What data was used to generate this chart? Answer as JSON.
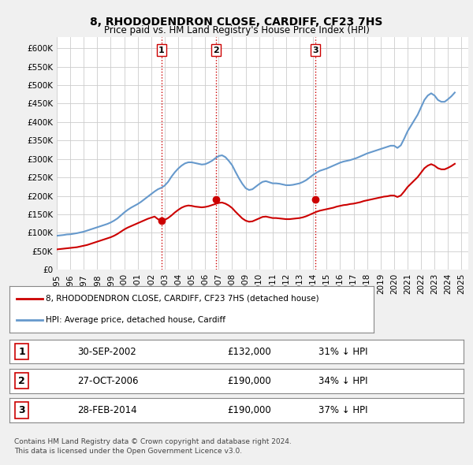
{
  "title": "8, RHODODENDRON CLOSE, CARDIFF, CF23 7HS",
  "subtitle": "Price paid vs. HM Land Registry's House Price Index (HPI)",
  "background_color": "#f0f0f0",
  "plot_bg_color": "#ffffff",
  "ylabel_ticks": [
    "£0",
    "£50K",
    "£100K",
    "£150K",
    "£200K",
    "£250K",
    "£300K",
    "£350K",
    "£400K",
    "£450K",
    "£500K",
    "£550K",
    "£600K"
  ],
  "ytick_values": [
    0,
    50000,
    100000,
    150000,
    200000,
    250000,
    300000,
    350000,
    400000,
    450000,
    500000,
    550000,
    600000
  ],
  "xlim_start": 1995.0,
  "xlim_end": 2025.5,
  "ylim": [
    0,
    630000
  ],
  "hpi_line_color": "#6699cc",
  "price_line_color": "#cc0000",
  "vline_color": "#cc0000",
  "vline_style": ":",
  "transaction_dates": [
    2002.75,
    2006.82,
    2014.16
  ],
  "transaction_prices": [
    132000,
    190000,
    190000
  ],
  "transaction_labels": [
    "1",
    "2",
    "3"
  ],
  "legend_text_1": "8, RHODODENDRON CLOSE, CARDIFF, CF23 7HS (detached house)",
  "legend_text_2": "HPI: Average price, detached house, Cardiff",
  "table_rows": [
    [
      "1",
      "30-SEP-2002",
      "£132,000",
      "31% ↓ HPI"
    ],
    [
      "2",
      "27-OCT-2006",
      "£190,000",
      "34% ↓ HPI"
    ],
    [
      "3",
      "28-FEB-2014",
      "£190,000",
      "37% ↓ HPI"
    ]
  ],
  "footer_text": "Contains HM Land Registry data © Crown copyright and database right 2024.\nThis data is licensed under the Open Government Licence v3.0.",
  "hpi_data_x": [
    1995.0,
    1995.25,
    1995.5,
    1995.75,
    1996.0,
    1996.25,
    1996.5,
    1996.75,
    1997.0,
    1997.25,
    1997.5,
    1997.75,
    1998.0,
    1998.25,
    1998.5,
    1998.75,
    1999.0,
    1999.25,
    1999.5,
    1999.75,
    2000.0,
    2000.25,
    2000.5,
    2000.75,
    2001.0,
    2001.25,
    2001.5,
    2001.75,
    2002.0,
    2002.25,
    2002.5,
    2002.75,
    2003.0,
    2003.25,
    2003.5,
    2003.75,
    2004.0,
    2004.25,
    2004.5,
    2004.75,
    2005.0,
    2005.25,
    2005.5,
    2005.75,
    2006.0,
    2006.25,
    2006.5,
    2006.75,
    2007.0,
    2007.25,
    2007.5,
    2007.75,
    2008.0,
    2008.25,
    2008.5,
    2008.75,
    2009.0,
    2009.25,
    2009.5,
    2009.75,
    2010.0,
    2010.25,
    2010.5,
    2010.75,
    2011.0,
    2011.25,
    2011.5,
    2011.75,
    2012.0,
    2012.25,
    2012.5,
    2012.75,
    2013.0,
    2013.25,
    2013.5,
    2013.75,
    2014.0,
    2014.25,
    2014.5,
    2014.75,
    2015.0,
    2015.25,
    2015.5,
    2015.75,
    2016.0,
    2016.25,
    2016.5,
    2016.75,
    2017.0,
    2017.25,
    2017.5,
    2017.75,
    2018.0,
    2018.25,
    2018.5,
    2018.75,
    2019.0,
    2019.25,
    2019.5,
    2019.75,
    2020.0,
    2020.25,
    2020.5,
    2020.75,
    2021.0,
    2021.25,
    2021.5,
    2021.75,
    2022.0,
    2022.25,
    2022.5,
    2022.75,
    2023.0,
    2023.25,
    2023.5,
    2023.75,
    2024.0,
    2024.25,
    2024.5
  ],
  "hpi_data_y": [
    92000,
    93000,
    94000,
    95500,
    96000,
    97500,
    99000,
    101000,
    103000,
    106000,
    109000,
    112000,
    115000,
    118000,
    121000,
    124000,
    128000,
    133000,
    139000,
    147000,
    155000,
    162000,
    168000,
    173000,
    178000,
    184000,
    191000,
    198000,
    205000,
    212000,
    218000,
    222000,
    228000,
    238000,
    252000,
    264000,
    274000,
    282000,
    288000,
    291000,
    291000,
    289000,
    287000,
    285000,
    286000,
    290000,
    295000,
    302000,
    308000,
    310000,
    305000,
    295000,
    283000,
    265000,
    248000,
    233000,
    221000,
    216000,
    218000,
    225000,
    232000,
    238000,
    240000,
    237000,
    234000,
    234000,
    233000,
    231000,
    229000,
    229000,
    230000,
    232000,
    234000,
    238000,
    243000,
    250000,
    257000,
    263000,
    268000,
    271000,
    274000,
    278000,
    282000,
    286000,
    290000,
    293000,
    295000,
    297000,
    300000,
    303000,
    307000,
    311000,
    315000,
    318000,
    321000,
    324000,
    327000,
    330000,
    333000,
    336000,
    336000,
    330000,
    337000,
    355000,
    375000,
    390000,
    405000,
    420000,
    440000,
    460000,
    472000,
    478000,
    472000,
    460000,
    455000,
    455000,
    462000,
    470000,
    480000
  ],
  "price_data_x": [
    1995.0,
    1995.25,
    1995.5,
    1995.75,
    1996.0,
    1996.25,
    1996.5,
    1996.75,
    1997.0,
    1997.25,
    1997.5,
    1997.75,
    1998.0,
    1998.25,
    1998.5,
    1998.75,
    1999.0,
    1999.25,
    1999.5,
    1999.75,
    2000.0,
    2000.25,
    2000.5,
    2000.75,
    2001.0,
    2001.25,
    2001.5,
    2001.75,
    2002.0,
    2002.25,
    2002.5,
    2002.75,
    2003.0,
    2003.25,
    2003.5,
    2003.75,
    2004.0,
    2004.25,
    2004.5,
    2004.75,
    2005.0,
    2005.25,
    2005.5,
    2005.75,
    2006.0,
    2006.25,
    2006.5,
    2006.75,
    2007.0,
    2007.25,
    2007.5,
    2007.75,
    2008.0,
    2008.25,
    2008.5,
    2008.75,
    2009.0,
    2009.25,
    2009.5,
    2009.75,
    2010.0,
    2010.25,
    2010.5,
    2010.75,
    2011.0,
    2011.25,
    2011.5,
    2011.75,
    2012.0,
    2012.25,
    2012.5,
    2012.75,
    2013.0,
    2013.25,
    2013.5,
    2013.75,
    2014.0,
    2014.25,
    2014.5,
    2014.75,
    2015.0,
    2015.25,
    2015.5,
    2015.75,
    2016.0,
    2016.25,
    2016.5,
    2016.75,
    2017.0,
    2017.25,
    2017.5,
    2017.75,
    2018.0,
    2018.25,
    2018.5,
    2018.75,
    2019.0,
    2019.25,
    2019.5,
    2019.75,
    2020.0,
    2020.25,
    2020.5,
    2020.75,
    2021.0,
    2021.25,
    2021.5,
    2021.75,
    2022.0,
    2022.25,
    2022.5,
    2022.75,
    2023.0,
    2023.25,
    2023.5,
    2023.75,
    2024.0,
    2024.25,
    2024.5
  ],
  "price_data_y": [
    55000,
    56000,
    57000,
    58000,
    59000,
    60000,
    61000,
    63000,
    65000,
    67000,
    70000,
    73000,
    76000,
    79000,
    82000,
    85000,
    88000,
    92000,
    97000,
    103000,
    109000,
    114000,
    118000,
    122000,
    126000,
    130000,
    134000,
    138000,
    141000,
    144000,
    137000,
    132000,
    135000,
    140000,
    147000,
    155000,
    162000,
    168000,
    172000,
    174000,
    173000,
    171000,
    170000,
    169000,
    170000,
    172000,
    175000,
    178000,
    181000,
    182000,
    179000,
    174000,
    167000,
    157000,
    148000,
    139000,
    133000,
    130000,
    131000,
    135000,
    139000,
    143000,
    144000,
    142000,
    140000,
    140000,
    139000,
    138000,
    137000,
    137000,
    138000,
    139000,
    140000,
    142000,
    145000,
    149000,
    153000,
    157000,
    160000,
    162000,
    164000,
    166000,
    168000,
    171000,
    173000,
    175000,
    176000,
    178000,
    179000,
    181000,
    183000,
    186000,
    188000,
    190000,
    192000,
    194000,
    196000,
    198000,
    199000,
    201000,
    201000,
    197000,
    201000,
    212000,
    224000,
    233000,
    242000,
    251000,
    263000,
    275000,
    282000,
    286000,
    282000,
    275000,
    272000,
    272000,
    276000,
    281000,
    287000
  ],
  "xtick_years": [
    1995,
    1996,
    1997,
    1998,
    1999,
    2000,
    2001,
    2002,
    2003,
    2004,
    2005,
    2006,
    2007,
    2008,
    2009,
    2010,
    2011,
    2012,
    2013,
    2014,
    2015,
    2016,
    2017,
    2018,
    2019,
    2020,
    2021,
    2022,
    2023,
    2024,
    2025
  ]
}
